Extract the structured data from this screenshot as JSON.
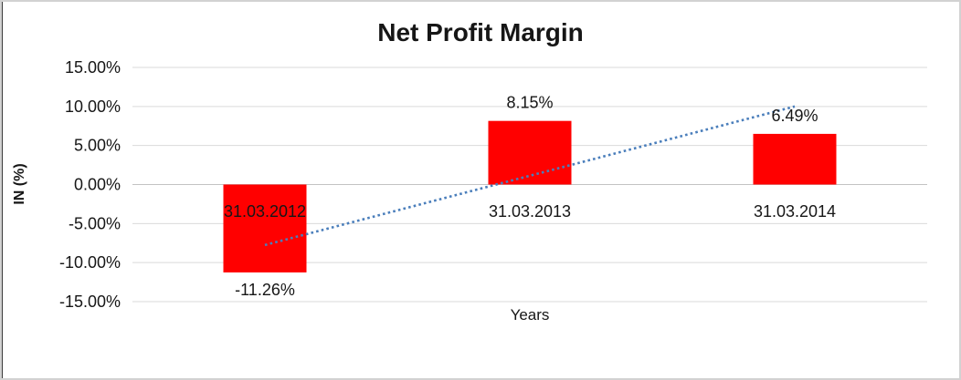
{
  "chart_data": {
    "type": "bar",
    "title": "Net Profit Margin",
    "xlabel": "Years",
    "ylabel": "IN (%)",
    "categories": [
      "31.03.2012",
      "31.03.2013",
      "31.03.2014"
    ],
    "values": [
      -11.26,
      8.15,
      6.49
    ],
    "value_labels": [
      "-11.26%",
      "8.15%",
      "6.49%"
    ],
    "y_ticks": [
      15,
      10,
      5,
      0,
      -5,
      -10,
      -15
    ],
    "y_tick_labels": [
      "15.00%",
      "10.00%",
      "5.00%",
      "0.00%",
      "-5.00%",
      "-10.00%",
      "-15.00%"
    ],
    "ylim": [
      -15,
      15
    ],
    "grid": true,
    "legend": "none",
    "colors": {
      "bar": "#ff0000",
      "trendline": "#4a7ebb",
      "gridline": "#d9d9d9",
      "zero_axis": "#c3c3c3",
      "text": "#161616"
    },
    "trendline": {
      "type": "linear",
      "style": "dotted"
    }
  }
}
